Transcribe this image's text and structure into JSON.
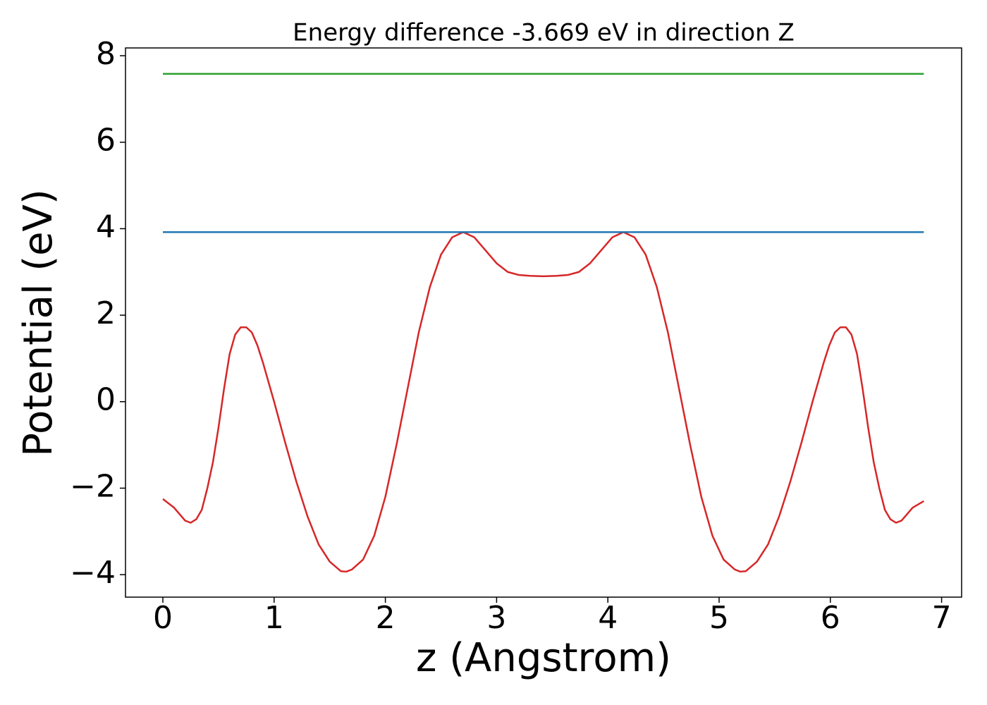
{
  "chart_data": {
    "type": "line",
    "title": "Energy difference -3.669 eV in direction Z",
    "xlabel": "z (Angstrom)",
    "ylabel": "Potential (eV)",
    "xlim": [
      -0.336,
      7.18
    ],
    "ylim": [
      -4.52,
      8.18
    ],
    "xticks": [
      0,
      1,
      2,
      3,
      4,
      5,
      6,
      7
    ],
    "yticks": [
      {
        "value": -4,
        "label": "−4"
      },
      {
        "value": -2,
        "label": "−2"
      },
      0,
      2,
      4,
      6,
      8
    ],
    "series": [
      {
        "color": "#d62728",
        "x": [
          0,
          0.1,
          0.2,
          0.25,
          0.3,
          0.35,
          0.4,
          0.45,
          0.5,
          0.55,
          0.6,
          0.65,
          0.7,
          0.75,
          0.8,
          0.85,
          0.9,
          1.0,
          1.1,
          1.2,
          1.3,
          1.4,
          1.5,
          1.6,
          1.65,
          1.7,
          1.8,
          1.9,
          2.0,
          2.1,
          2.2,
          2.3,
          2.4,
          2.5,
          2.6,
          2.7,
          2.8,
          2.9,
          3.0,
          3.1,
          3.2,
          3.3,
          3.42,
          3.54,
          3.64,
          3.74,
          3.84,
          3.94,
          4.04,
          4.14,
          4.24,
          4.34,
          4.44,
          4.54,
          4.64,
          4.74,
          4.84,
          4.94,
          5.04,
          5.14,
          5.19,
          5.24,
          5.34,
          5.44,
          5.54,
          5.64,
          5.74,
          5.84,
          5.94,
          5.99,
          6.04,
          6.09,
          6.14,
          6.19,
          6.24,
          6.29,
          6.34,
          6.39,
          6.44,
          6.49,
          6.54,
          6.59,
          6.64,
          6.74,
          6.84
        ],
        "values": [
          -2.25,
          -2.45,
          -2.75,
          -2.8,
          -2.72,
          -2.5,
          -2.0,
          -1.4,
          -0.6,
          0.3,
          1.1,
          1.55,
          1.72,
          1.72,
          1.6,
          1.3,
          0.9,
          0.0,
          -0.95,
          -1.85,
          -2.65,
          -3.3,
          -3.7,
          -3.92,
          -3.93,
          -3.88,
          -3.65,
          -3.1,
          -2.2,
          -1.0,
          0.3,
          1.6,
          2.65,
          3.4,
          3.8,
          3.92,
          3.8,
          3.5,
          3.2,
          3.0,
          2.93,
          2.91,
          2.9,
          2.91,
          2.93,
          3.0,
          3.2,
          3.5,
          3.8,
          3.92,
          3.8,
          3.4,
          2.65,
          1.6,
          0.3,
          -1.0,
          -2.2,
          -3.1,
          -3.65,
          -3.88,
          -3.93,
          -3.92,
          -3.7,
          -3.3,
          -2.65,
          -1.85,
          -0.95,
          0.0,
          0.9,
          1.3,
          1.6,
          1.72,
          1.72,
          1.55,
          1.1,
          0.3,
          -0.6,
          -1.4,
          -2.0,
          -2.5,
          -2.72,
          -2.8,
          -2.75,
          -2.45,
          -2.3
        ]
      },
      {
        "color": "#1f77b4",
        "x": [
          0,
          6.84
        ],
        "values": [
          3.92,
          3.92
        ]
      },
      {
        "color": "#2ca02c",
        "x": [
          0,
          6.84
        ],
        "values": [
          7.58,
          7.58
        ]
      }
    ]
  }
}
